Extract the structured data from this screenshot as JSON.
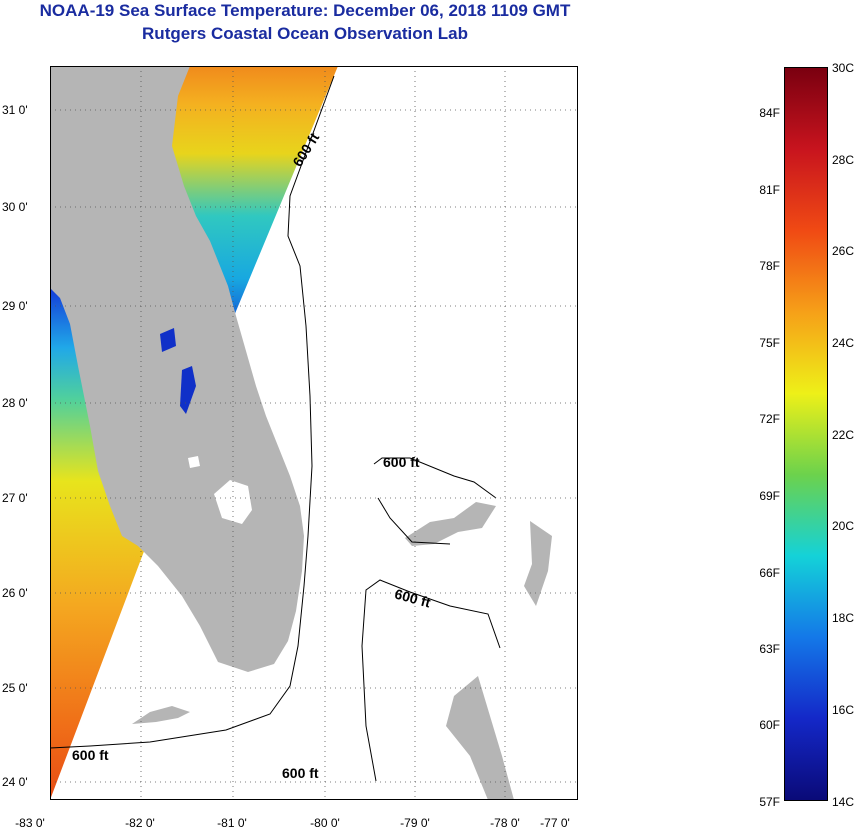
{
  "header": {
    "title": "NOAA-19 Sea Surface Temperature:  December 06, 2018 1109 GMT",
    "subtitle": "Rutgers Coastal Ocean Observation Lab"
  },
  "map": {
    "lat_labels": [
      "31 0'",
      "30 0'",
      "29 0'",
      "28 0'",
      "27 0'",
      "26 0'",
      "25 0'",
      "24 0'"
    ],
    "lon_labels": [
      "-83 0'",
      "-82 0'",
      "-81 0'",
      "-80 0'",
      "-79 0'",
      "-78 0'",
      "-77 0'"
    ],
    "contour_labels": [
      "600 ft",
      "600 ft",
      "600 ft",
      "600 ft",
      "600 ft"
    ],
    "colors": {
      "land": "#b5b5b5",
      "background": "#ffffff",
      "contour": "#000000",
      "grid": "#555555"
    }
  },
  "colorbar": {
    "fahrenheit": [
      "84F",
      "81F",
      "78F",
      "75F",
      "72F",
      "69F",
      "66F",
      "63F",
      "60F",
      "57F"
    ],
    "celsius": [
      "30C",
      "28C",
      "26C",
      "24C",
      "22C",
      "20C",
      "18C",
      "16C",
      "14C"
    ],
    "colors": [
      "#7a0010",
      "#c8141e",
      "#f04a14",
      "#f6a018",
      "#eef018",
      "#6cd24c",
      "#14d2d8",
      "#1478e8",
      "#1428c8",
      "#0a0a78"
    ]
  }
}
